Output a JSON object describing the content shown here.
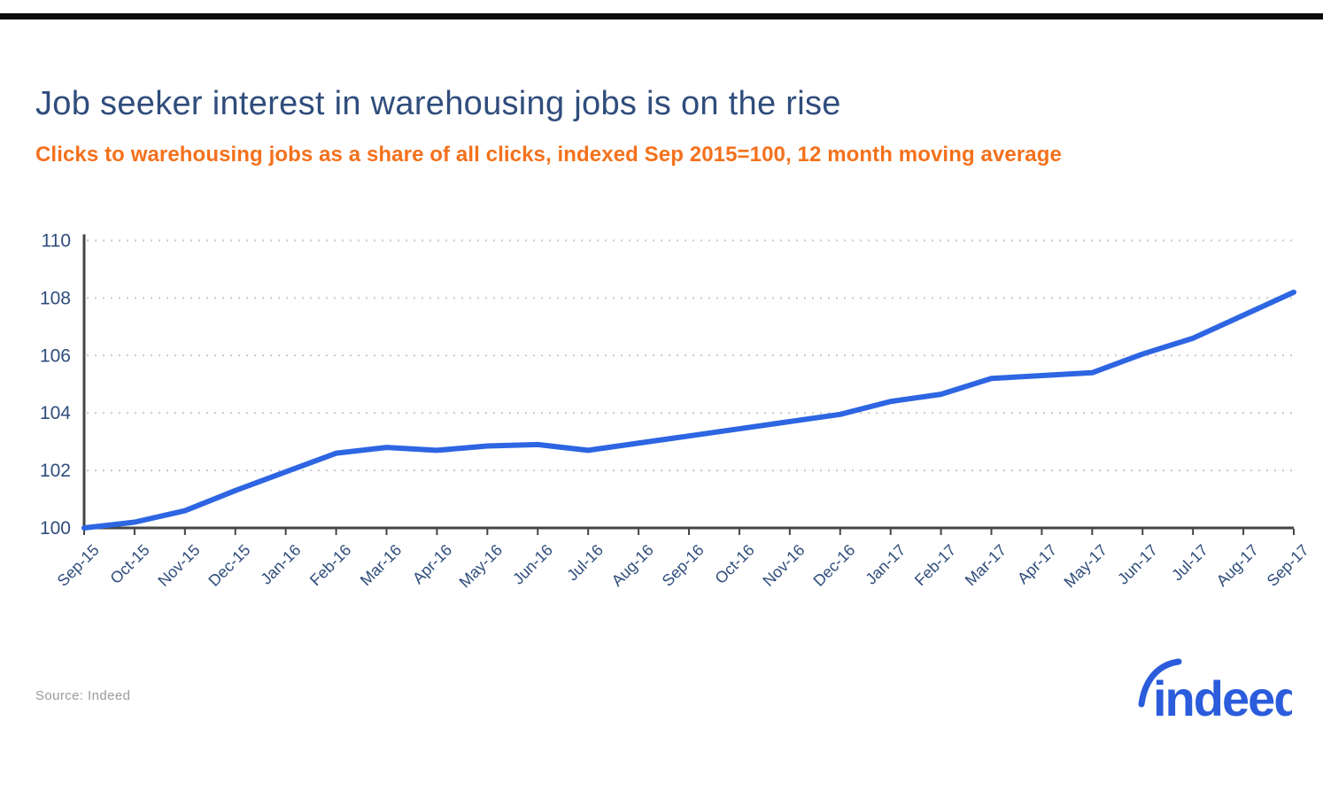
{
  "page": {
    "title": "Job seeker interest in warehousing jobs is on the rise",
    "subtitle": "Clicks to warehousing jobs as a share of all clicks, indexed Sep 2015=100, 12 month moving average",
    "source_note": "Source: Indeed",
    "logo_text": "indeed"
  },
  "colors": {
    "title_navy": "#2f4d7c",
    "subtitle_orange": "#f4711c",
    "line_blue": "#2d65e2",
    "logo_blue": "#2a5cdb",
    "grid_gray": "#c9c9cd",
    "axis_gray": "#454545",
    "tick_label_navy": "#2f4d7c",
    "source_gray": "#9a9aa0",
    "top_bar_black": "#0a0a0c"
  },
  "chart_data": {
    "type": "line",
    "title": "Job seeker interest in warehousing jobs is on the rise",
    "subtitle": "Clicks to warehousing jobs as a share of all clicks, indexed Sep 2015=100, 12 month moving average",
    "xlabel": "",
    "ylabel": "",
    "x": [
      "Sep-15",
      "Oct-15",
      "Nov-15",
      "Dec-15",
      "Jan-16",
      "Feb-16",
      "Mar-16",
      "Apr-16",
      "May-16",
      "Jun-16",
      "Jul-16",
      "Aug-16",
      "Sep-16",
      "Oct-16",
      "Nov-16",
      "Dec-16",
      "Jan-17",
      "Feb-17",
      "Mar-17",
      "Apr-17",
      "May-17",
      "Jun-17",
      "Jul-17",
      "Aug-17",
      "Sep-17"
    ],
    "series": [
      {
        "name": "Clicks to warehousing jobs, indexed Sep 2015=100 (12 month moving average)",
        "values": [
          100.0,
          100.2,
          100.6,
          101.3,
          101.95,
          102.6,
          102.8,
          102.7,
          102.85,
          102.9,
          102.7,
          102.95,
          103.2,
          103.45,
          103.7,
          103.95,
          104.4,
          104.65,
          105.2,
          105.3,
          105.4,
          106.05,
          106.6,
          107.4,
          108.2
        ]
      }
    ],
    "ylim": [
      100,
      110
    ],
    "yticks": [
      100,
      102,
      104,
      106,
      108,
      110
    ],
    "grid": "horizontal-dotted",
    "legend": "none"
  }
}
